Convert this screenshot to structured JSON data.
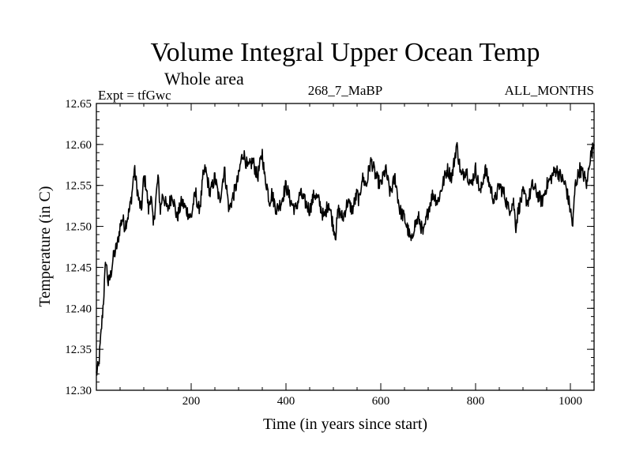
{
  "chart_data": {
    "type": "line",
    "title": "Volume Integral Upper Ocean Temp",
    "subtitle": "Whole area",
    "expt_label": "Expt = tfGwc",
    "run_label": "268_7_MaBP",
    "months_label": "ALL_MONTHS",
    "xlabel": "Time (in years since start)",
    "ylabel": "Temperature (in C)",
    "xlim": [
      0,
      1050
    ],
    "ylim": [
      12.3,
      12.65
    ],
    "x_ticks": [
      200,
      400,
      600,
      800,
      1000
    ],
    "x_tick_labels": [
      "200",
      "400",
      "600",
      "800",
      "1000"
    ],
    "y_ticks": [
      12.3,
      12.35,
      12.4,
      12.45,
      12.5,
      12.55,
      12.6,
      12.65
    ],
    "y_tick_labels": [
      "12.30",
      "12.35",
      "12.40",
      "12.45",
      "12.50",
      "12.55",
      "12.60",
      "12.65"
    ],
    "grid": false,
    "series": [
      {
        "name": "Volume integral upper ocean temperature",
        "color": "#000000",
        "x": [
          0,
          5,
          10,
          15,
          20,
          25,
          30,
          35,
          40,
          45,
          50,
          55,
          60,
          65,
          70,
          75,
          80,
          85,
          90,
          95,
          100,
          105,
          110,
          115,
          120,
          125,
          130,
          135,
          140,
          145,
          150,
          160,
          170,
          180,
          190,
          200,
          205,
          210,
          215,
          220,
          225,
          230,
          240,
          250,
          260,
          270,
          280,
          290,
          300,
          305,
          310,
          320,
          330,
          340,
          350,
          355,
          360,
          365,
          370,
          380,
          390,
          400,
          410,
          420,
          430,
          440,
          450,
          460,
          470,
          480,
          490,
          500,
          505,
          510,
          520,
          530,
          540,
          550,
          555,
          560,
          570,
          575,
          580,
          590,
          600,
          610,
          620,
          630,
          640,
          650,
          655,
          660,
          665,
          670,
          680,
          690,
          700,
          710,
          720,
          730,
          740,
          750,
          755,
          760,
          765,
          770,
          780,
          790,
          800,
          810,
          820,
          830,
          840,
          850,
          860,
          870,
          880,
          885,
          890,
          900,
          910,
          920,
          930,
          940,
          950,
          960,
          970,
          980,
          990,
          1000,
          1005,
          1010,
          1020,
          1030,
          1035,
          1040,
          1045,
          1050
        ],
        "y": [
          12.32,
          12.33,
          12.37,
          12.41,
          12.46,
          12.43,
          12.44,
          12.46,
          12.47,
          12.48,
          12.5,
          12.51,
          12.5,
          12.51,
          12.52,
          12.54,
          12.57,
          12.55,
          12.53,
          12.52,
          12.56,
          12.55,
          12.52,
          12.54,
          12.5,
          12.53,
          12.56,
          12.52,
          12.54,
          12.53,
          12.52,
          12.54,
          12.51,
          12.53,
          12.52,
          12.51,
          12.53,
          12.54,
          12.52,
          12.53,
          12.56,
          12.57,
          12.54,
          12.56,
          12.53,
          12.57,
          12.52,
          12.54,
          12.56,
          12.58,
          12.59,
          12.57,
          12.58,
          12.56,
          12.59,
          12.56,
          12.55,
          12.53,
          12.54,
          12.52,
          12.53,
          12.55,
          12.53,
          12.52,
          12.54,
          12.53,
          12.52,
          12.54,
          12.53,
          12.51,
          12.53,
          12.5,
          12.49,
          12.52,
          12.51,
          12.53,
          12.52,
          12.54,
          12.53,
          12.56,
          12.55,
          12.57,
          12.58,
          12.56,
          12.55,
          12.57,
          12.54,
          12.56,
          12.52,
          12.51,
          12.5,
          12.49,
          12.48,
          12.5,
          12.51,
          12.49,
          12.52,
          12.54,
          12.53,
          12.55,
          12.57,
          12.56,
          12.58,
          12.6,
          12.58,
          12.56,
          12.57,
          12.55,
          12.57,
          12.54,
          12.57,
          12.55,
          12.53,
          12.55,
          12.54,
          12.52,
          12.53,
          12.5,
          12.52,
          12.54,
          12.53,
          12.55,
          12.54,
          12.53,
          12.55,
          12.56,
          12.57,
          12.56,
          12.55,
          12.52,
          12.5,
          12.55,
          12.57,
          12.56,
          12.55,
          12.58,
          12.59,
          12.6
        ]
      }
    ]
  }
}
